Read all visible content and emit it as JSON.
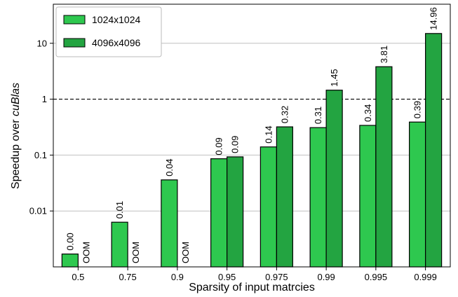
{
  "chart_data": {
    "type": "bar",
    "xlabel": "Sparsity of input matrcies",
    "ylabel_prefix": "Speedup over ",
    "ylabel_emph": "cuBlas",
    "yscale": "log",
    "ylim": [
      0.001,
      50
    ],
    "yticks": [
      0.01,
      0.1,
      1,
      10
    ],
    "ytick_labels": [
      "0.01",
      "0.1",
      "1",
      "10"
    ],
    "grid": "horizontal",
    "reference_line": {
      "y": 1,
      "style": "dashed"
    },
    "legend_position": "top-left",
    "categories": [
      "0.5",
      "0.75",
      "0.9",
      "0.95",
      "0.975",
      "0.99",
      "0.995",
      "0.999"
    ],
    "series": [
      {
        "name": "1024x1024",
        "color": "#2ec84f",
        "values": [
          0.0017,
          0.0063,
          0.036,
          0.086,
          0.14,
          0.31,
          0.34,
          0.39
        ],
        "labels": [
          "0.00",
          "0.01",
          "0.04",
          "0.09",
          "0.14",
          "0.31",
          "0.34",
          "0.39"
        ]
      },
      {
        "name": "4096x4096",
        "color": "#23a441",
        "values": [
          null,
          null,
          null,
          0.093,
          0.32,
          1.45,
          3.81,
          14.96
        ],
        "labels": [
          "OOM",
          "OOM",
          "OOM",
          "0.09",
          "0.32",
          "1.45",
          "3.81",
          "14.96"
        ]
      }
    ]
  }
}
